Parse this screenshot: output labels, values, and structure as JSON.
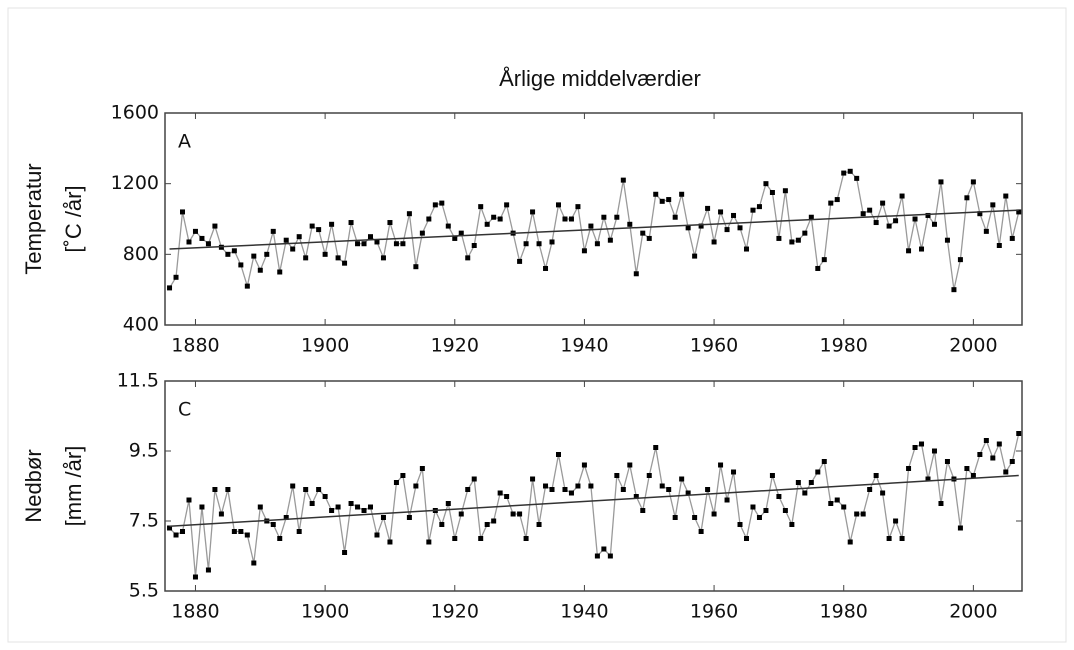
{
  "chart_data": [
    {
      "type": "line",
      "title": "Årlige middelværdier",
      "panel_label": "A",
      "ylabel": "Temperatur",
      "ylabel_unit": "[˚C /år]",
      "x": [
        1876,
        1877,
        1878,
        1879,
        1880,
        1881,
        1882,
        1883,
        1884,
        1885,
        1886,
        1887,
        1888,
        1889,
        1890,
        1891,
        1892,
        1893,
        1894,
        1895,
        1896,
        1897,
        1898,
        1899,
        1900,
        1901,
        1902,
        1903,
        1904,
        1905,
        1906,
        1907,
        1908,
        1909,
        1910,
        1911,
        1912,
        1913,
        1914,
        1915,
        1916,
        1917,
        1918,
        1919,
        1920,
        1921,
        1922,
        1923,
        1924,
        1925,
        1926,
        1927,
        1928,
        1929,
        1930,
        1931,
        1932,
        1933,
        1934,
        1935,
        1936,
        1937,
        1938,
        1939,
        1940,
        1941,
        1942,
        1943,
        1944,
        1945,
        1946,
        1947,
        1948,
        1949,
        1950,
        1951,
        1952,
        1953,
        1954,
        1955,
        1956,
        1957,
        1958,
        1959,
        1960,
        1961,
        1962,
        1963,
        1964,
        1965,
        1966,
        1967,
        1968,
        1969,
        1970,
        1971,
        1972,
        1973,
        1974,
        1975,
        1976,
        1977,
        1978,
        1979,
        1980,
        1981,
        1982,
        1983,
        1984,
        1985,
        1986,
        1987,
        1988,
        1989,
        1990,
        1991,
        1992,
        1993,
        1994,
        1995,
        1996,
        1997,
        1998,
        1999,
        2000,
        2001,
        2002,
        2003,
        2004,
        2005,
        2006,
        2007
      ],
      "series": [
        {
          "color": "#9a9a9a",
          "marker_color": "#000000",
          "values": [
            610,
            670,
            1040,
            870,
            930,
            890,
            860,
            960,
            840,
            800,
            820,
            740,
            620,
            790,
            710,
            800,
            930,
            700,
            880,
            830,
            900,
            780,
            960,
            940,
            800,
            970,
            780,
            750,
            980,
            860,
            860,
            900,
            870,
            780,
            980,
            860,
            860,
            1030,
            730,
            920,
            1000,
            1080,
            1090,
            960,
            890,
            920,
            780,
            850,
            1070,
            970,
            1010,
            1000,
            1080,
            920,
            760,
            860,
            1040,
            860,
            720,
            870,
            1080,
            1000,
            1000,
            1070,
            820,
            960,
            860,
            1010,
            880,
            1010,
            1220,
            970,
            690,
            920,
            890,
            1140,
            1100,
            1110,
            1010,
            1140,
            950,
            790,
            960,
            1060,
            870,
            1040,
            940,
            1020,
            950,
            830,
            1050,
            1070,
            1200,
            1150,
            890,
            1160,
            870,
            880,
            920,
            1010,
            720,
            770,
            1090,
            1110,
            1260,
            1270,
            1230,
            1030,
            1050,
            980,
            1090,
            960,
            990,
            1130,
            820,
            1000,
            830,
            1020,
            970,
            1210,
            880,
            600,
            770,
            1120,
            1210,
            1030,
            930,
            1080,
            850,
            1130,
            890,
            1040
          ]
        }
      ],
      "trend": {
        "color": "#333333",
        "x": [
          1876,
          2007
        ],
        "values": [
          830,
          1050
        ]
      },
      "xlim": [
        1875.3,
        2007.5
      ],
      "xticks": [
        1880,
        1900,
        1920,
        1940,
        1960,
        1980,
        2000
      ],
      "ylim": [
        400,
        1600
      ],
      "yticks": [
        400,
        800,
        1200,
        1600
      ]
    },
    {
      "type": "line",
      "panel_label": "C",
      "ylabel": "Nedbør",
      "ylabel_unit": "[mm /år]",
      "x": [
        1876,
        1877,
        1878,
        1879,
        1880,
        1881,
        1882,
        1883,
        1884,
        1885,
        1886,
        1887,
        1888,
        1889,
        1890,
        1891,
        1892,
        1893,
        1894,
        1895,
        1896,
        1897,
        1898,
        1899,
        1900,
        1901,
        1902,
        1903,
        1904,
        1905,
        1906,
        1907,
        1908,
        1909,
        1910,
        1911,
        1912,
        1913,
        1914,
        1915,
        1916,
        1917,
        1918,
        1919,
        1920,
        1921,
        1922,
        1923,
        1924,
        1925,
        1926,
        1927,
        1928,
        1929,
        1930,
        1931,
        1932,
        1933,
        1934,
        1935,
        1936,
        1937,
        1938,
        1939,
        1940,
        1941,
        1942,
        1943,
        1944,
        1945,
        1946,
        1947,
        1948,
        1949,
        1950,
        1951,
        1952,
        1953,
        1954,
        1955,
        1956,
        1957,
        1958,
        1959,
        1960,
        1961,
        1962,
        1963,
        1964,
        1965,
        1966,
        1967,
        1968,
        1969,
        1970,
        1971,
        1972,
        1973,
        1974,
        1975,
        1976,
        1977,
        1978,
        1979,
        1980,
        1981,
        1982,
        1983,
        1984,
        1985,
        1986,
        1987,
        1988,
        1989,
        1990,
        1991,
        1992,
        1993,
        1994,
        1995,
        1996,
        1997,
        1998,
        1999,
        2000,
        2001,
        2002,
        2003,
        2004,
        2005,
        2006,
        2007
      ],
      "series": [
        {
          "color": "#9a9a9a",
          "marker_color": "#000000",
          "values": [
            7.3,
            7.1,
            7.2,
            8.1,
            5.9,
            7.9,
            6.1,
            8.4,
            7.7,
            8.4,
            7.2,
            7.2,
            7.1,
            6.3,
            7.9,
            7.5,
            7.4,
            7.0,
            7.6,
            8.5,
            7.2,
            8.4,
            8.0,
            8.4,
            8.2,
            7.8,
            7.9,
            6.6,
            8.0,
            7.9,
            7.8,
            7.9,
            7.1,
            7.6,
            6.9,
            8.6,
            8.8,
            7.6,
            8.5,
            9.0,
            6.9,
            7.8,
            7.4,
            8.0,
            7.0,
            7.7,
            8.4,
            8.7,
            7.0,
            7.4,
            7.5,
            8.3,
            8.2,
            7.7,
            7.7,
            7.0,
            8.7,
            7.4,
            8.5,
            8.4,
            9.4,
            8.4,
            8.3,
            8.5,
            9.1,
            8.5,
            6.5,
            6.7,
            6.5,
            8.8,
            8.4,
            9.1,
            8.2,
            7.8,
            8.8,
            9.6,
            8.5,
            8.4,
            7.6,
            8.7,
            8.3,
            7.6,
            7.2,
            8.4,
            7.7,
            9.1,
            8.1,
            8.9,
            7.4,
            7.0,
            7.9,
            7.6,
            7.8,
            8.8,
            8.2,
            7.8,
            7.4,
            8.6,
            8.3,
            8.6,
            8.9,
            9.2,
            8.0,
            8.1,
            7.9,
            6.9,
            7.7,
            7.7,
            8.4,
            8.8,
            8.3,
            7.0,
            7.5,
            7.0,
            9.0,
            9.6,
            9.7,
            8.7,
            9.5,
            8.0,
            9.2,
            8.7,
            7.3,
            9.0,
            8.8,
            9.4,
            9.8,
            9.3,
            9.7,
            8.9,
            9.2,
            10.0
          ]
        }
      ],
      "trend": {
        "color": "#333333",
        "x": [
          1876,
          2007
        ],
        "values": [
          7.35,
          8.8
        ]
      },
      "xlim": [
        1875.3,
        2007.5
      ],
      "xticks": [
        1880,
        1900,
        1920,
        1940,
        1960,
        1980,
        2000
      ],
      "ylim": [
        5.5,
        11.5
      ],
      "yticks": [
        5.5,
        7.5,
        9.5,
        11.5
      ]
    }
  ]
}
